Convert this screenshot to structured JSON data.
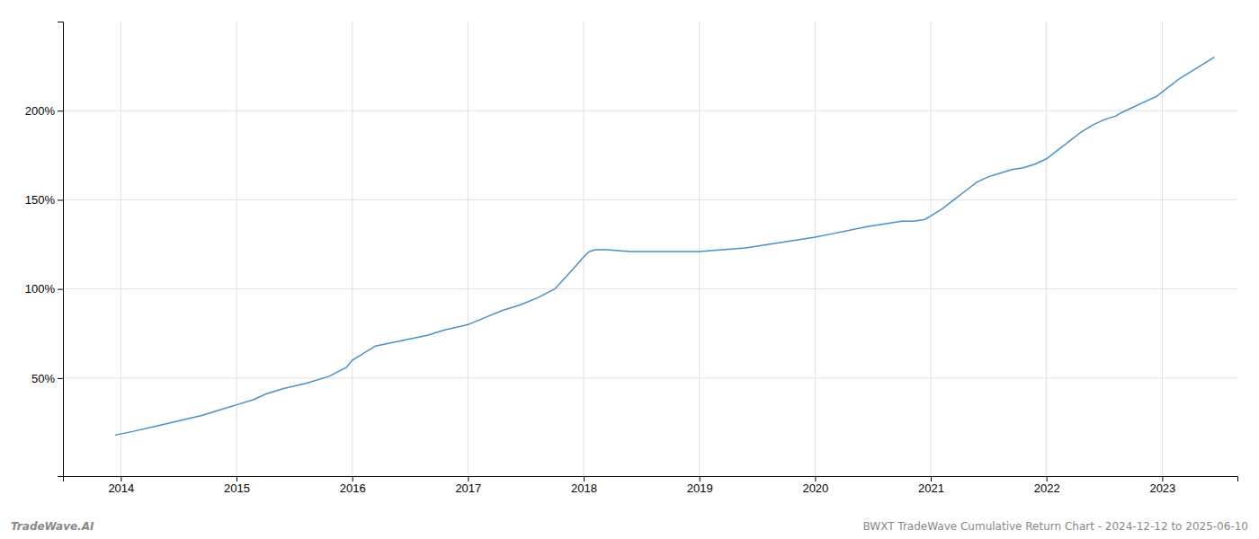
{
  "chart_data": {
    "type": "line",
    "title": "BWXT TradeWave Cumulative Return Chart - 2024-12-12 to 2025-06-10",
    "annotations": [
      "TradeWave.AI"
    ],
    "color": "#4a90c4",
    "grid": true,
    "xlim": [
      2013.5,
      2023.65
    ],
    "xticks": [
      2014,
      2015,
      2016,
      2017,
      2018,
      2019,
      2020,
      2021,
      2022,
      2023
    ],
    "ylim": [
      -5,
      250
    ],
    "yticks": [
      {
        "value": 50,
        "label": "50%"
      },
      {
        "value": 100,
        "label": "100%"
      },
      {
        "value": 150,
        "label": "150%"
      },
      {
        "value": 200,
        "label": "200%"
      }
    ],
    "x": [
      2013.95,
      2014.1,
      2014.3,
      2014.5,
      2014.7,
      2014.85,
      2015.0,
      2015.15,
      2015.25,
      2015.4,
      2015.6,
      2015.8,
      2015.95,
      2016.0,
      2016.1,
      2016.2,
      2016.35,
      2016.5,
      2016.65,
      2016.8,
      2017.0,
      2017.15,
      2017.3,
      2017.45,
      2017.6,
      2017.75,
      2017.85,
      2017.92,
      2018.0,
      2018.05,
      2018.1,
      2018.2,
      2018.4,
      2018.6,
      2018.8,
      2019.0,
      2019.2,
      2019.4,
      2019.5,
      2019.6,
      2019.7,
      2019.8,
      2019.9,
      2020.0,
      2020.15,
      2020.3,
      2020.45,
      2020.55,
      2020.65,
      2020.75,
      2020.85,
      2020.95,
      2021.0,
      2021.1,
      2021.2,
      2021.3,
      2021.4,
      2021.5,
      2021.6,
      2021.7,
      2021.8,
      2021.9,
      2022.0,
      2022.1,
      2022.2,
      2022.3,
      2022.4,
      2022.5,
      2022.6,
      2022.65,
      2022.75,
      2022.85,
      2022.95,
      2023.05,
      2023.15,
      2023.25,
      2023.35,
      2023.45
    ],
    "values": [
      18,
      20,
      23,
      26,
      29,
      32,
      35,
      38,
      41,
      44,
      47,
      51,
      56,
      60,
      64,
      68,
      70,
      72,
      74,
      77,
      80,
      84,
      88,
      91,
      95,
      100,
      107,
      112,
      118,
      121,
      122,
      122,
      121,
      121,
      121,
      121,
      122,
      123,
      124,
      125,
      126,
      127,
      128,
      129,
      131,
      133,
      135,
      136,
      137,
      138,
      138,
      139,
      141,
      145,
      150,
      155,
      160,
      163,
      165,
      167,
      168,
      170,
      173,
      178,
      183,
      188,
      192,
      195,
      197,
      199,
      202,
      205,
      208,
      213,
      218,
      222,
      226,
      230
    ]
  }
}
